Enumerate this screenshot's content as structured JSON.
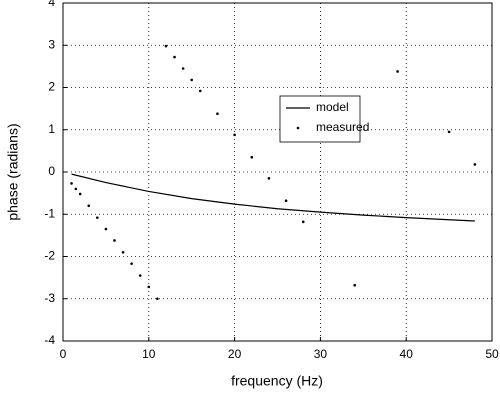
{
  "chart_data": {
    "type": "line",
    "x_label": "frequency (Hz)",
    "y_label": "phase (radians)",
    "xlim": [
      0,
      50
    ],
    "xticks": [
      0,
      10,
      20,
      30,
      40,
      50
    ],
    "ylim": [
      -4,
      4
    ],
    "yticks": [
      -4,
      -3,
      -2,
      -1,
      0,
      1,
      2,
      3,
      4
    ],
    "grid": true,
    "legend": "upper-right",
    "series": [
      {
        "name": "model",
        "color": "#000000",
        "style": "line",
        "x": [
          1,
          5,
          10,
          15,
          20,
          25,
          30,
          35,
          40,
          45,
          48
        ],
        "values": [
          -0.05,
          -0.25,
          -0.46,
          -0.63,
          -0.76,
          -0.87,
          -0.95,
          -1.02,
          -1.08,
          -1.13,
          -1.16
        ]
      },
      {
        "name": "measured",
        "color": "#000000",
        "style": "markers",
        "x": [
          1,
          1.5,
          2,
          3,
          4,
          5,
          6,
          7,
          8,
          9,
          10,
          11,
          12,
          13,
          14,
          15,
          16,
          18,
          20,
          22,
          24,
          26,
          28,
          34,
          39,
          45,
          48
        ],
        "values": [
          -0.27,
          -0.4,
          -0.52,
          -0.8,
          -1.08,
          -1.35,
          -1.62,
          -1.9,
          -2.17,
          -2.45,
          -2.72,
          -3.0,
          2.98,
          2.72,
          2.45,
          2.18,
          1.92,
          1.38,
          0.88,
          0.35,
          -0.15,
          -0.68,
          -1.18,
          -2.68,
          2.38,
          0.95,
          0.18
        ]
      }
    ]
  }
}
